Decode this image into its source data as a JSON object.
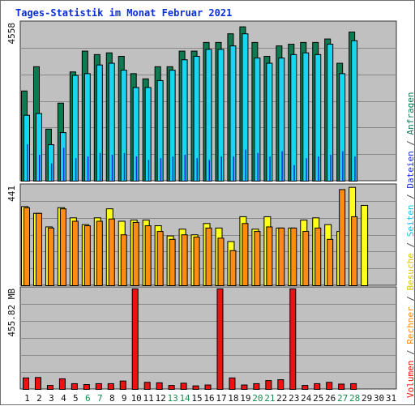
{
  "title": "Tages-Statistik im Monat Februar 2021",
  "colors": {
    "anfragen": "#0f7a52",
    "dateien": "#1a2ad6",
    "seiten": "#18d6f0",
    "besuche": "#ffff1a",
    "rechner": "#ff8c12",
    "volumen": "#ee1111",
    "panel_bg": "#c0c0c0",
    "grid": "#888888",
    "weekend_label": "#198a50",
    "weekday_label": "#111111"
  },
  "legend": {
    "volumen": "Volumen",
    "rechner": "Rechner",
    "besuche": "Besuche",
    "seiten": "Seiten",
    "dateien": "Dateien",
    "anfragen": "Anfragen",
    "separator": " / "
  },
  "chart_data": [
    {
      "type": "bar",
      "panel": "top",
      "ymax_label": "4558",
      "ylim": [
        0,
        4558
      ],
      "categories": [
        "1",
        "2",
        "3",
        "4",
        "5",
        "6",
        "7",
        "8",
        "9",
        "10",
        "11",
        "12",
        "13",
        "14",
        "15",
        "16",
        "17",
        "18",
        "19",
        "20",
        "21",
        "22",
        "23",
        "24",
        "25",
        "26",
        "27",
        "28",
        "29",
        "30",
        "31"
      ],
      "weekend_days": [
        "6",
        "7",
        "13",
        "14",
        "20",
        "21",
        "27",
        "28"
      ],
      "series": [
        {
          "name": "Anfragen",
          "values": [
            2600,
            3300,
            1500,
            2250,
            3150,
            3750,
            3650,
            3700,
            3600,
            3100,
            2950,
            3300,
            3300,
            3750,
            3750,
            4000,
            4000,
            4250,
            4450,
            4000,
            3600,
            3900,
            3950,
            4000,
            4000,
            4100,
            3400,
            4300,
            0,
            0,
            0
          ]
        },
        {
          "name": "Seiten",
          "values": [
            1900,
            1950,
            1050,
            1400,
            3050,
            3100,
            3350,
            3400,
            3200,
            2700,
            2700,
            2900,
            3200,
            3500,
            3600,
            3800,
            3800,
            3900,
            4250,
            3550,
            3400,
            3550,
            3650,
            3700,
            3650,
            3950,
            3100,
            4050,
            0,
            0,
            0
          ]
        },
        {
          "name": "Dateien",
          "values": [
            1050,
            750,
            500,
            950,
            650,
            700,
            800,
            750,
            800,
            700,
            600,
            650,
            700,
            750,
            650,
            600,
            700,
            700,
            900,
            800,
            700,
            850,
            450,
            650,
            700,
            750,
            850,
            700,
            0,
            0,
            0
          ]
        }
      ]
    },
    {
      "type": "bar",
      "panel": "middle",
      "ymax_label": "441",
      "ylim": [
        0,
        441
      ],
      "categories": [
        "1",
        "2",
        "3",
        "4",
        "5",
        "6",
        "7",
        "8",
        "9",
        "10",
        "11",
        "12",
        "13",
        "14",
        "15",
        "16",
        "17",
        "18",
        "19",
        "20",
        "21",
        "22",
        "23",
        "24",
        "25",
        "26",
        "27",
        "28",
        "29",
        "30",
        "31"
      ],
      "series": [
        {
          "name": "Besuche",
          "values": [
            350,
            320,
            260,
            345,
            300,
            270,
            300,
            340,
            285,
            290,
            290,
            265,
            220,
            250,
            225,
            275,
            255,
            195,
            305,
            250,
            305,
            255,
            255,
            290,
            300,
            270,
            240,
            435,
            355,
            0,
            0
          ]
        },
        {
          "name": "Rechner",
          "values": [
            345,
            320,
            255,
            340,
            285,
            265,
            285,
            295,
            225,
            280,
            265,
            240,
            205,
            225,
            215,
            255,
            210,
            155,
            275,
            240,
            260,
            255,
            255,
            240,
            255,
            205,
            425,
            305,
            0,
            0,
            0
          ]
        }
      ]
    },
    {
      "type": "bar",
      "panel": "bottom",
      "ymax_label": "455.82 MB",
      "ylim": [
        0,
        455.82
      ],
      "categories": [
        "1",
        "2",
        "3",
        "4",
        "5",
        "6",
        "7",
        "8",
        "9",
        "10",
        "11",
        "12",
        "13",
        "14",
        "15",
        "16",
        "17",
        "18",
        "19",
        "20",
        "21",
        "22",
        "23",
        "24",
        "25",
        "26",
        "27",
        "28",
        "29",
        "30",
        "31"
      ],
      "series": [
        {
          "name": "Volumen",
          "values": [
            52,
            54,
            18,
            48,
            26,
            22,
            26,
            26,
            38,
            455.82,
            32,
            30,
            18,
            28,
            16,
            20,
            455.82,
            52,
            20,
            26,
            40,
            44,
            455.82,
            18,
            26,
            32,
            24,
            26,
            0,
            0,
            0
          ]
        }
      ]
    }
  ]
}
